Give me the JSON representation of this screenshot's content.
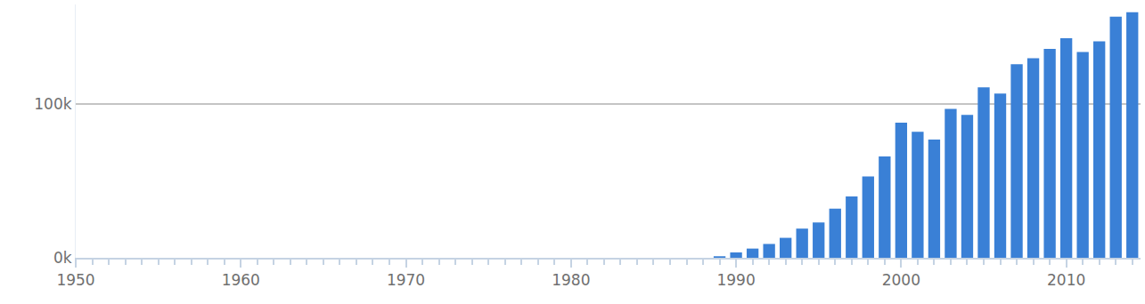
{
  "chart_data": {
    "type": "bar",
    "x": [
      1950,
      1951,
      1952,
      1953,
      1954,
      1955,
      1956,
      1957,
      1958,
      1959,
      1960,
      1961,
      1962,
      1963,
      1964,
      1965,
      1966,
      1967,
      1968,
      1969,
      1970,
      1971,
      1972,
      1973,
      1974,
      1975,
      1976,
      1977,
      1978,
      1979,
      1980,
      1981,
      1982,
      1983,
      1984,
      1985,
      1986,
      1987,
      1988,
      1989,
      1990,
      1991,
      1992,
      1993,
      1994,
      1995,
      1996,
      1997,
      1998,
      1999,
      2000,
      2001,
      2002,
      2003,
      2004,
      2005,
      2006,
      2007,
      2008,
      2009,
      2010,
      2011,
      2012,
      2013,
      2014
    ],
    "values": [
      0,
      0,
      0,
      0,
      0,
      0,
      0,
      0,
      0,
      0,
      0,
      0,
      0,
      0,
      0,
      0,
      0,
      0,
      0,
      0,
      0,
      0,
      0,
      0,
      0,
      0,
      0,
      0,
      0,
      0,
      0,
      0,
      0,
      0,
      0,
      0,
      0,
      0,
      0,
      1000,
      3500,
      6000,
      9000,
      13000,
      19000,
      23000,
      32000,
      40000,
      53000,
      66000,
      88000,
      82000,
      77000,
      97000,
      93000,
      111000,
      107000,
      126000,
      130000,
      136000,
      143000,
      134000,
      141000,
      157000,
      160000
    ],
    "color": "#3a80d6",
    "xlim": [
      1950,
      2014.5
    ],
    "xticks": [
      1950,
      1960,
      1970,
      1980,
      1990,
      2000,
      2010
    ],
    "ylim": [
      0,
      165000
    ],
    "yticks": [
      {
        "value": 0,
        "label": "0k"
      },
      {
        "value": 100000,
        "label": "100k"
      }
    ],
    "grid": true
  }
}
